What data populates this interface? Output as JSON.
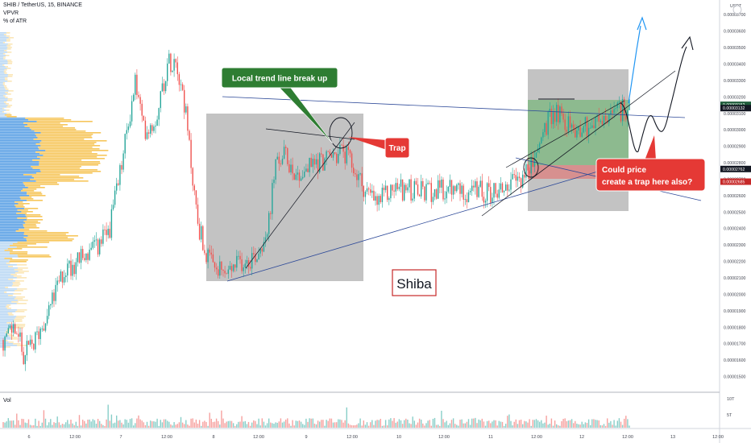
{
  "header": {
    "symbol_line": "SHIB / TetherUS, 15, BINANCE",
    "indicator": "VPVR",
    "indicator_sub": "% of ATR"
  },
  "volume_pane": {
    "label": "Vol",
    "axis_labels": [
      "10T",
      "5T"
    ]
  },
  "price_axis": {
    "currency": "USDT",
    "ticks": [
      "0.00003700",
      "0.00003600",
      "0.00003500",
      "0.00003400",
      "0.00003300",
      "0.00003200",
      "0.00003100",
      "0.00003000",
      "0.00002900",
      "0.00002800",
      "0.00002700",
      "0.00002600",
      "0.00002500",
      "0.00002400",
      "0.00002300",
      "0.00002200",
      "0.00002100",
      "0.00002000",
      "0.00001900",
      "0.00001800",
      "0.00001700",
      "0.00001600",
      "0.00001500",
      "0.00001400"
    ],
    "tags": [
      {
        "value": "0.00003152",
        "color": "#1e5c3a"
      },
      {
        "value": "0.00003132",
        "color": "#131722"
      },
      {
        "value": "0.00002762",
        "color": "#131722"
      },
      {
        "value": "0.00002685",
        "color": "#c62828"
      }
    ]
  },
  "time_axis": {
    "ticks": [
      "6",
      "12:00",
      "7",
      "12:00",
      "8",
      "12:00",
      "9",
      "12:00",
      "10",
      "12:00",
      "11",
      "12:00",
      "12",
      "12:00",
      "13",
      "12:00"
    ]
  },
  "annotations": {
    "trend_break": "Local trend line break up",
    "trap": "Trap",
    "could_line1": "Could price",
    "could_line2": "create a trap here also?",
    "title": "Shiba"
  },
  "colors": {
    "up": "#26a69a",
    "down": "#ef5350",
    "vp_up": "#3d8fe0",
    "vp_down": "#f5c04a",
    "trend_line": "#2e4a99",
    "projection": "#2196f3",
    "callout_green": "#2e7d32",
    "callout_red": "#e53935"
  },
  "chart_data": {
    "type": "candlestick",
    "xlabel": "",
    "ylabel": "",
    "ylim": [
      1.4e-05,
      3.75e-05
    ],
    "price_path": [
      [
        0,
        1.7e-05
      ],
      [
        18,
        1.8e-05
      ],
      [
        30,
        1.63e-05
      ],
      [
        42,
        1.7e-05
      ],
      [
        55,
        1.85e-05
      ],
      [
        65,
        1.96e-05
      ],
      [
        80,
        2.15e-05
      ],
      [
        100,
        2.22e-05
      ],
      [
        120,
        2.28e-05
      ],
      [
        135,
        2.38e-05
      ],
      [
        148,
        2.7e-05
      ],
      [
        158,
        3e-05
      ],
      [
        168,
        3.3e-05
      ],
      [
        178,
        3e-05
      ],
      [
        192,
        3.05e-05
      ],
      [
        208,
        3.4e-05
      ],
      [
        218,
        3.45e-05
      ],
      [
        228,
        3.2e-05
      ],
      [
        237,
        2.8e-05
      ],
      [
        245,
        2.45e-05
      ],
      [
        255,
        2.25e-05
      ],
      [
        265,
        2.15e-05
      ],
      [
        280,
        2.12e-05
      ],
      [
        300,
        2.2e-05
      ],
      [
        320,
        2.25e-05
      ],
      [
        335,
        2.45e-05
      ],
      [
        340,
        2.75e-05
      ],
      [
        352,
        2.85e-05
      ],
      [
        370,
        2.72e-05
      ],
      [
        390,
        2.8e-05
      ],
      [
        410,
        2.83e-05
      ],
      [
        425,
        2.87e-05
      ],
      [
        440,
        2.75e-05
      ],
      [
        455,
        2.62e-05
      ],
      [
        468,
        2.55e-05
      ],
      [
        490,
        2.65e-05
      ],
      [
        520,
        2.62e-05
      ],
      [
        550,
        2.63e-05
      ],
      [
        580,
        2.63e-05
      ],
      [
        610,
        2.62e-05
      ],
      [
        640,
        2.68e-05
      ],
      [
        660,
        2.78e-05
      ],
      [
        675,
        3e-05
      ],
      [
        690,
        3.12e-05
      ],
      [
        710,
        3e-05
      ],
      [
        730,
        3.03e-05
      ],
      [
        750,
        3.05e-05
      ],
      [
        765,
        3.1e-05
      ],
      [
        780,
        3.14e-05
      ]
    ]
  }
}
